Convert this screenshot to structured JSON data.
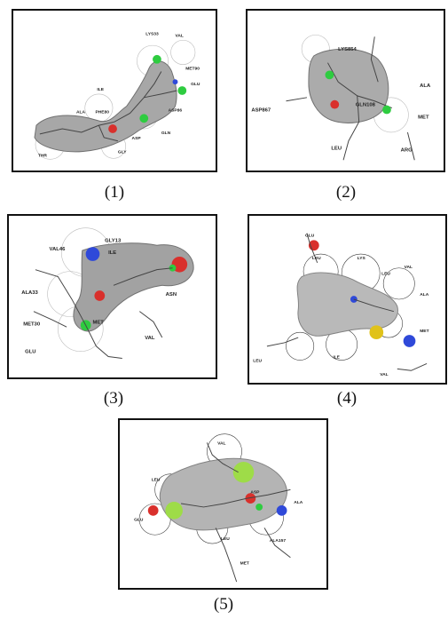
{
  "figure": {
    "panels": [
      {
        "caption": "(1)",
        "residue_labels": [
          "LYS33",
          "MET90",
          "GLU",
          "ASP86",
          "ALA",
          "PHE80",
          "GLN",
          "ASP",
          "THR",
          "GLY",
          "ILE",
          "VAL"
        ]
      },
      {
        "caption": "(2)",
        "residue_labels": [
          "LYS854",
          "ASP867",
          "GLN108",
          "ALA",
          "MET",
          "LEU",
          "ARG"
        ]
      },
      {
        "caption": "(3)",
        "residue_labels": [
          "GLY13",
          "VAL46",
          "ILE",
          "ASN",
          "ALA33",
          "MET30",
          "GLU",
          "VAL",
          "MET"
        ]
      },
      {
        "caption": "(4)",
        "residue_labels": [
          "GLU",
          "LEU",
          "LYS",
          "LEU",
          "VAL",
          "ALA",
          "MET",
          "LEU",
          "ILE",
          "VAL"
        ]
      },
      {
        "caption": "(5)",
        "residue_labels": [
          "VAL",
          "LEU",
          "ASP",
          "ALA",
          "ALA157",
          "LEU",
          "MET",
          "GLU"
        ]
      }
    ],
    "colors": {
      "surface": "#9b9b9b",
      "hbond_highlight": "#2ecc40",
      "oxygen": "#d9302c",
      "nitrogen": "#2f49d9",
      "sulfur": "#e0c21a",
      "mesh": "#555555"
    }
  }
}
